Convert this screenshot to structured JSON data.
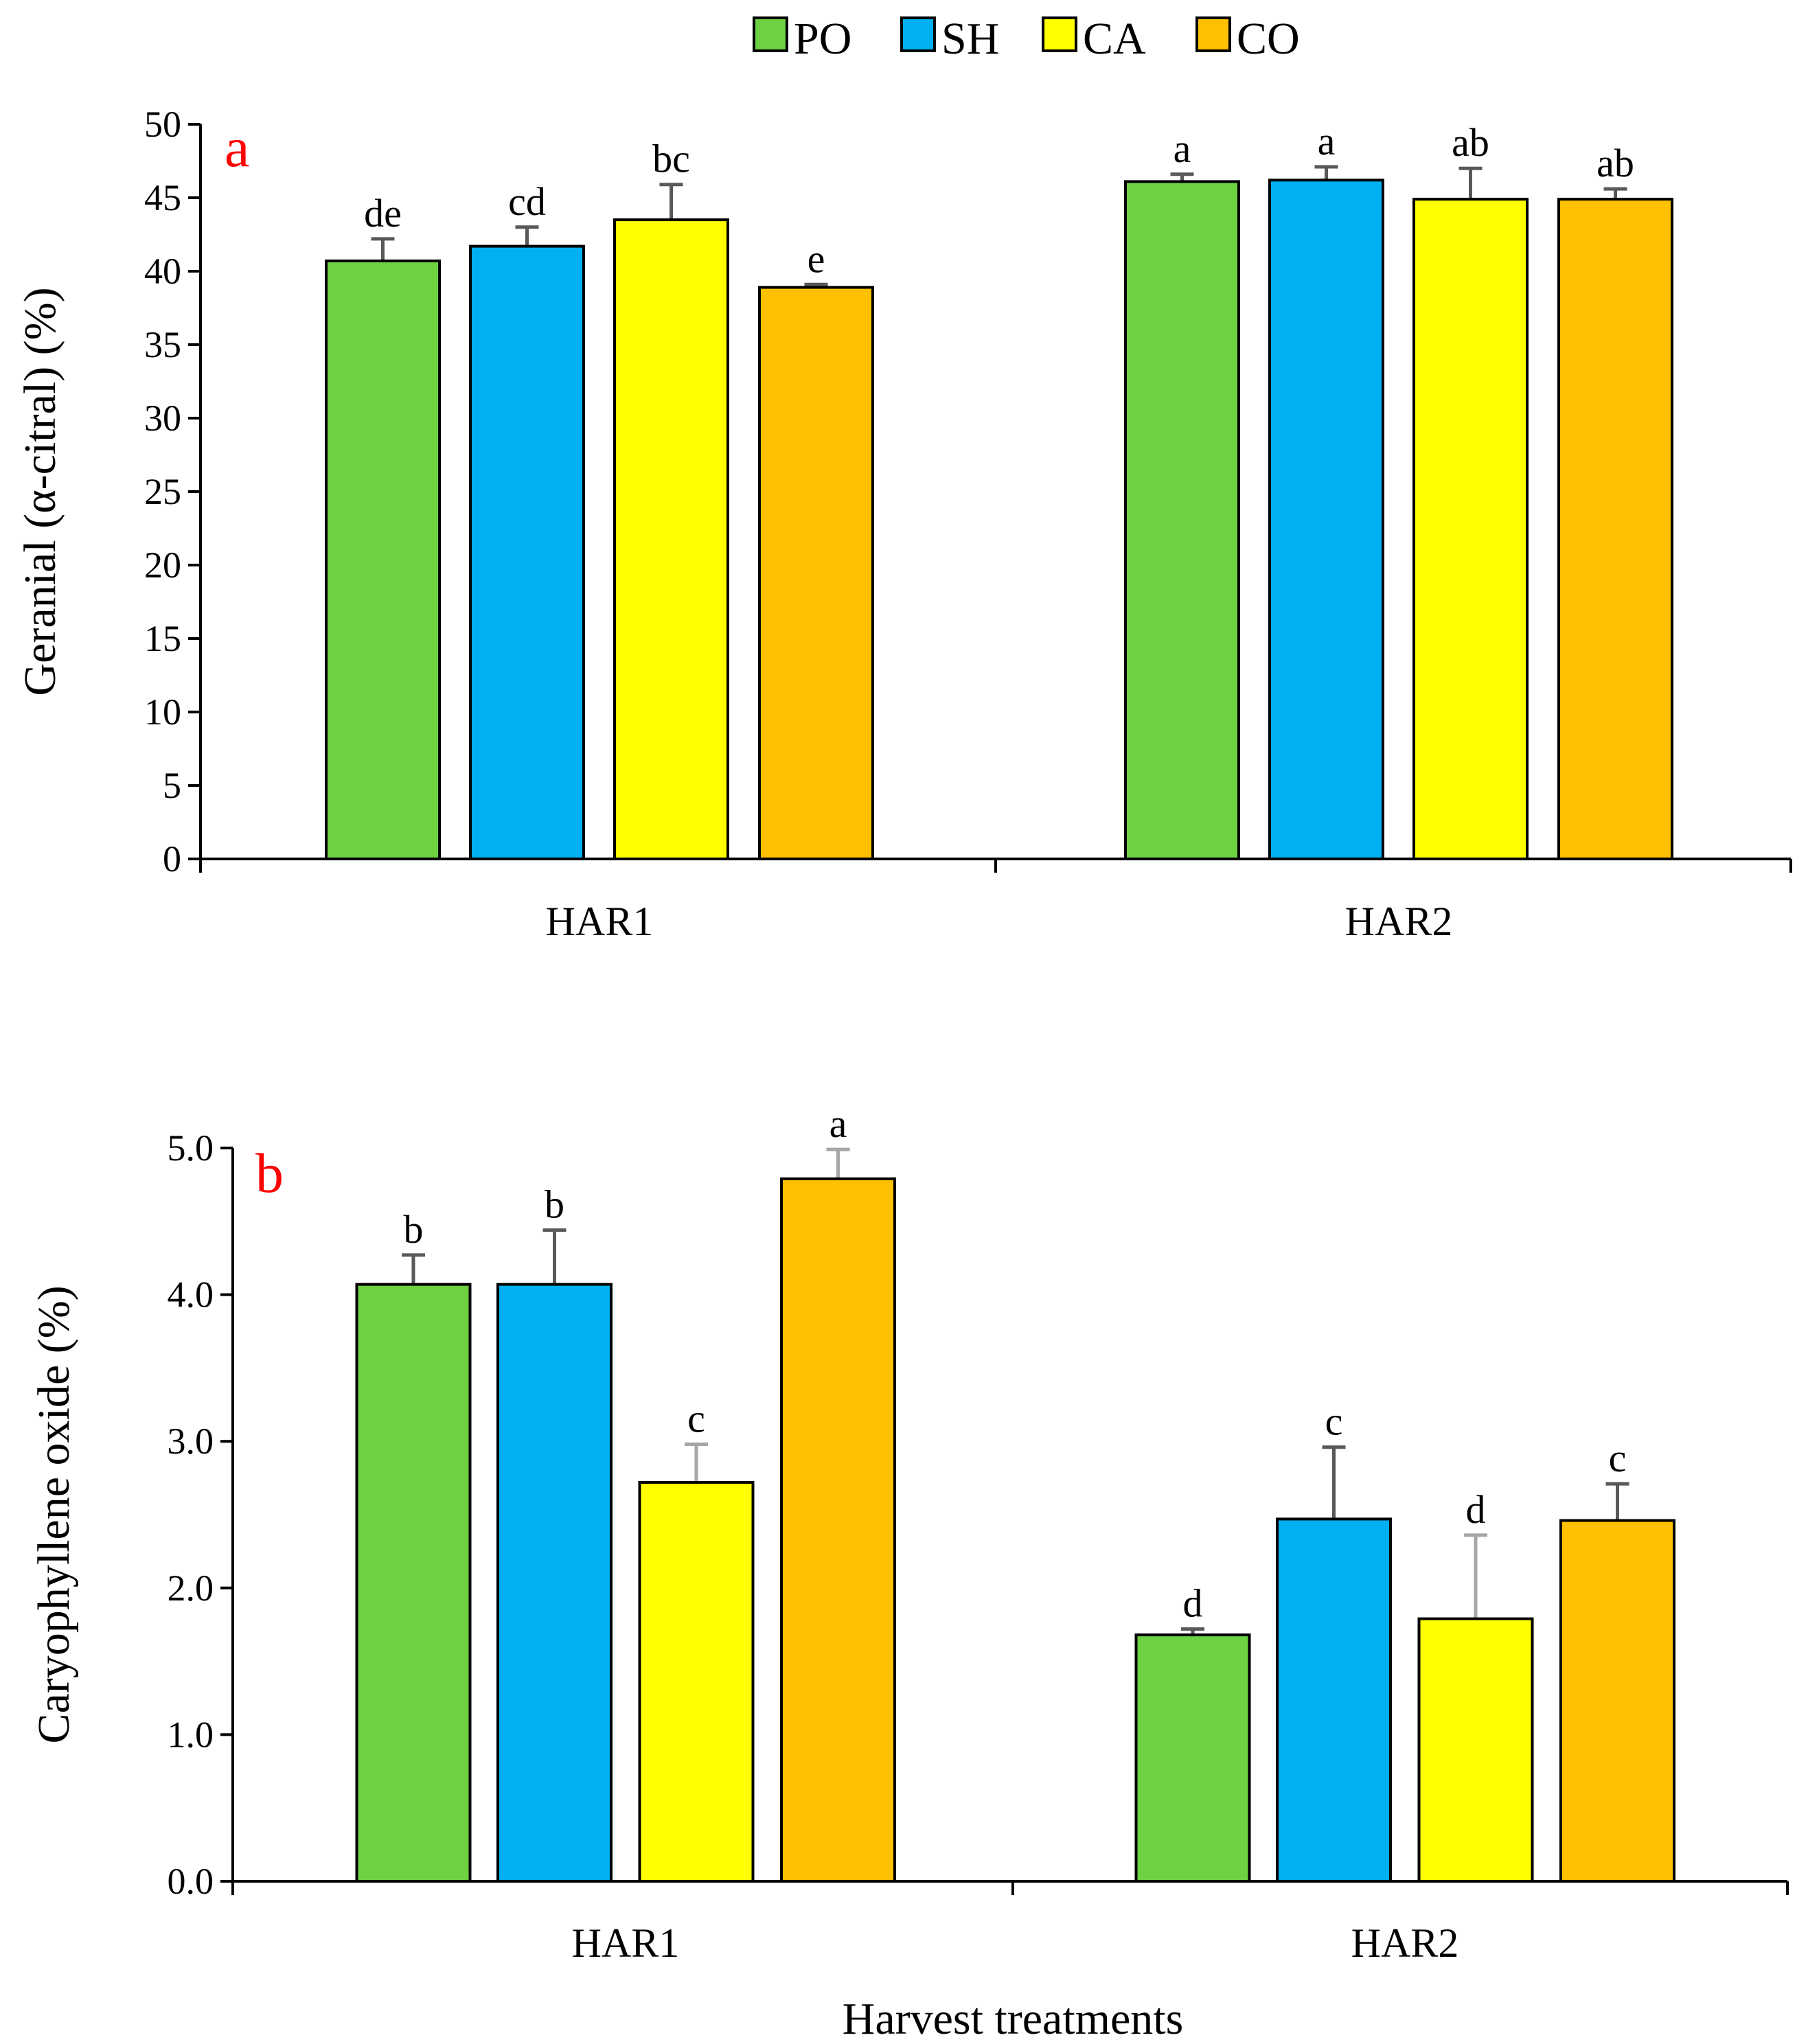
{
  "legend": {
    "items": [
      {
        "key": "PO",
        "label": "PO",
        "color": "#6dd142"
      },
      {
        "key": "SH",
        "label": "SH",
        "color": "#00b0f0"
      },
      {
        "key": "CA",
        "label": "CA",
        "color": "#ffff00"
      },
      {
        "key": "CO",
        "label": "CO",
        "color": "#ffc000"
      }
    ]
  },
  "colors": {
    "panel_label": "#ff0000",
    "axis": "#000000",
    "error_bar_dark": "#595959",
    "error_bar_light": "#a6a6a6"
  },
  "x_axis_title": "Harvest treatments",
  "chart_data": [
    {
      "type": "bar",
      "panel_label": "a",
      "ylabel": "Geranial (α-citral) (%)",
      "ylim": [
        0,
        50
      ],
      "yticks": [
        0,
        5,
        10,
        15,
        20,
        25,
        30,
        35,
        40,
        45,
        50
      ],
      "ytick_labels": [
        "0",
        "5",
        "10",
        "15",
        "20",
        "25",
        "30",
        "35",
        "40",
        "45",
        "50"
      ],
      "categories": [
        "HAR1",
        "HAR2"
      ],
      "series": [
        {
          "name": "PO",
          "values": [
            40.7,
            46.1
          ],
          "errors": [
            1.5,
            0.5
          ],
          "letters": [
            "de",
            "a"
          ]
        },
        {
          "name": "SH",
          "values": [
            41.7,
            46.2
          ],
          "errors": [
            1.3,
            0.9
          ],
          "letters": [
            "cd",
            "a"
          ]
        },
        {
          "name": "CA",
          "values": [
            43.5,
            44.9
          ],
          "errors": [
            2.4,
            2.1
          ],
          "letters": [
            "bc",
            "ab"
          ]
        },
        {
          "name": "CO",
          "values": [
            38.9,
            44.9
          ],
          "errors": [
            0.2,
            0.7
          ],
          "letters": [
            "e",
            "ab"
          ]
        }
      ]
    },
    {
      "type": "bar",
      "panel_label": "b",
      "ylabel": "Caryophyllene oxide (%)",
      "ylim": [
        0,
        5
      ],
      "yticks": [
        0,
        1,
        2,
        3,
        4,
        5
      ],
      "ytick_labels": [
        "0.0",
        "1.0",
        "2.0",
        "3.0",
        "4.0",
        "5.0"
      ],
      "categories": [
        "HAR1",
        "HAR2"
      ],
      "xlabel": "Harvest treatments",
      "series": [
        {
          "name": "PO",
          "values": [
            4.07,
            1.68
          ],
          "errors": [
            0.2,
            0.04
          ],
          "letters": [
            "b",
            "d"
          ]
        },
        {
          "name": "SH",
          "values": [
            4.07,
            2.47
          ],
          "errors": [
            0.37,
            0.49
          ],
          "letters": [
            "b",
            "c"
          ]
        },
        {
          "name": "CA",
          "values": [
            2.72,
            1.79
          ],
          "errors": [
            0.26,
            0.57
          ],
          "letters": [
            "c",
            "d"
          ]
        },
        {
          "name": "CO",
          "values": [
            4.79,
            2.46
          ],
          "errors": [
            0.2,
            0.25
          ],
          "letters": [
            "a",
            "c"
          ]
        }
      ]
    }
  ]
}
